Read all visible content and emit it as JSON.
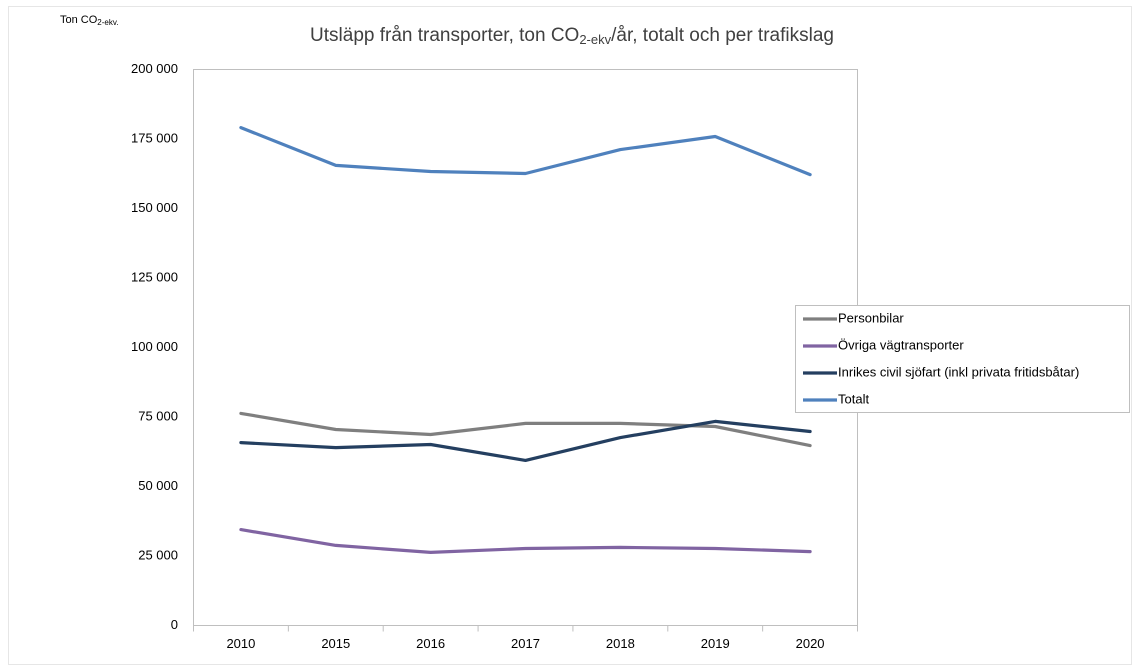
{
  "chart_data": {
    "type": "line",
    "title": {
      "before": "Utsläpp från transporter,  ton CO",
      "sub": "2-ekv",
      "after": "/år, totalt och per trafikslag"
    },
    "y_label": {
      "before": "Ton CO",
      "sub": "2-ekv."
    },
    "categories": [
      "2010",
      "2015",
      "2016",
      "2017",
      "2018",
      "2019",
      "2020"
    ],
    "series": [
      {
        "name": "Personbilar",
        "color": "#7f7f7f",
        "values": [
          76300,
          70500,
          68700,
          72700,
          72700,
          71600,
          64700
        ]
      },
      {
        "name": "Övriga vägtransporter",
        "color": "#8064a2",
        "values": [
          34500,
          28800,
          26300,
          27700,
          28100,
          27700,
          26600
        ]
      },
      {
        "name": "Inrikes civil sjöfart (inkl privata fritidsbåtar)",
        "color": "#243f60",
        "values": [
          65800,
          64000,
          65100,
          59400,
          67600,
          73400,
          69800
        ]
      },
      {
        "name": "Totalt",
        "color": "#4f81bd",
        "values": [
          179100,
          165500,
          163300,
          162600,
          171200,
          175900,
          162200
        ]
      }
    ],
    "ylim": [
      0,
      200000
    ],
    "yticks": [
      0,
      {
        "value": 25000,
        "label": "25 000"
      },
      {
        "value": 50000,
        "label": "50 000"
      },
      {
        "value": 75000,
        "label": "75 000"
      },
      {
        "value": 100000,
        "label": "100 000"
      },
      {
        "value": 125000,
        "label": "125 000"
      },
      {
        "value": 150000,
        "label": "150 000"
      },
      {
        "value": 175000,
        "label": "175 000"
      },
      {
        "value": 200000,
        "label": "200 000"
      }
    ],
    "grid": false,
    "legend": "right"
  }
}
